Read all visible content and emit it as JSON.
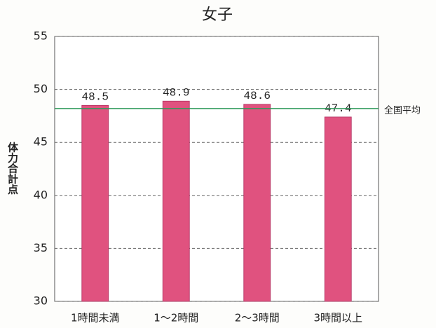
{
  "chart_data": {
    "type": "bar",
    "title": "女子",
    "y_label": "体力合計点",
    "categories": [
      "1時間未満",
      "1～2時間",
      "2～3時間",
      "3時間以上"
    ],
    "values": [
      48.5,
      48.9,
      48.6,
      47.4
    ],
    "color": "#e0527f",
    "ylim": [
      30,
      55
    ],
    "yticks": [
      30,
      35,
      40,
      45,
      50,
      55
    ],
    "grid": true,
    "reference_line": {
      "value": 48.2,
      "label": "全国平均",
      "color": "#2e9a5a"
    }
  }
}
